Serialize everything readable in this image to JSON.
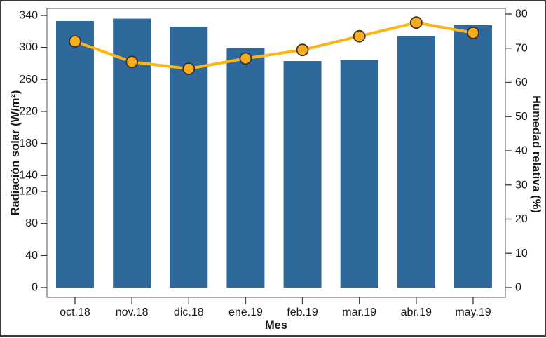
{
  "figure": {
    "background": "#ffffff",
    "border_color": "#3a3a3a",
    "frame_color": "#8c8c8c",
    "tick_color": "#454545",
    "text_color": "#1a1a1a"
  },
  "chart_data": {
    "type": "combo",
    "categories": [
      "oct.18",
      "nov.18",
      "dic.18",
      "ene.19",
      "feb.19",
      "mar.19",
      "abr.19",
      "may.19"
    ],
    "series": [
      {
        "name": "Radiación solar",
        "type": "bar",
        "axis": "left",
        "color": "#2F689B",
        "values": [
          333,
          336,
          326,
          299,
          283,
          284,
          314,
          328
        ]
      },
      {
        "name": "Humedad relativa",
        "type": "line",
        "axis": "right",
        "color": "#FDB515",
        "marker_fill": "#F9AC1C",
        "marker_stroke": "#333333",
        "values": [
          72,
          66,
          64,
          67,
          69.5,
          73.5,
          77.5,
          74.5
        ]
      }
    ],
    "xlabel": "Mes",
    "left_axis": {
      "label": "Radiación solar (W/m²)",
      "color": "#F5A21B",
      "ticks": [
        0,
        40,
        80,
        120,
        140,
        180,
        220,
        260,
        300,
        340
      ],
      "range": [
        0,
        340
      ]
    },
    "right_axis": {
      "label": "Humedad relativa (%)",
      "color": "#2E6DA4",
      "ticks": [
        0,
        10,
        20,
        30,
        40,
        50,
        60,
        70,
        80
      ],
      "range": [
        0,
        80
      ]
    },
    "grid": false,
    "legend": "none"
  }
}
